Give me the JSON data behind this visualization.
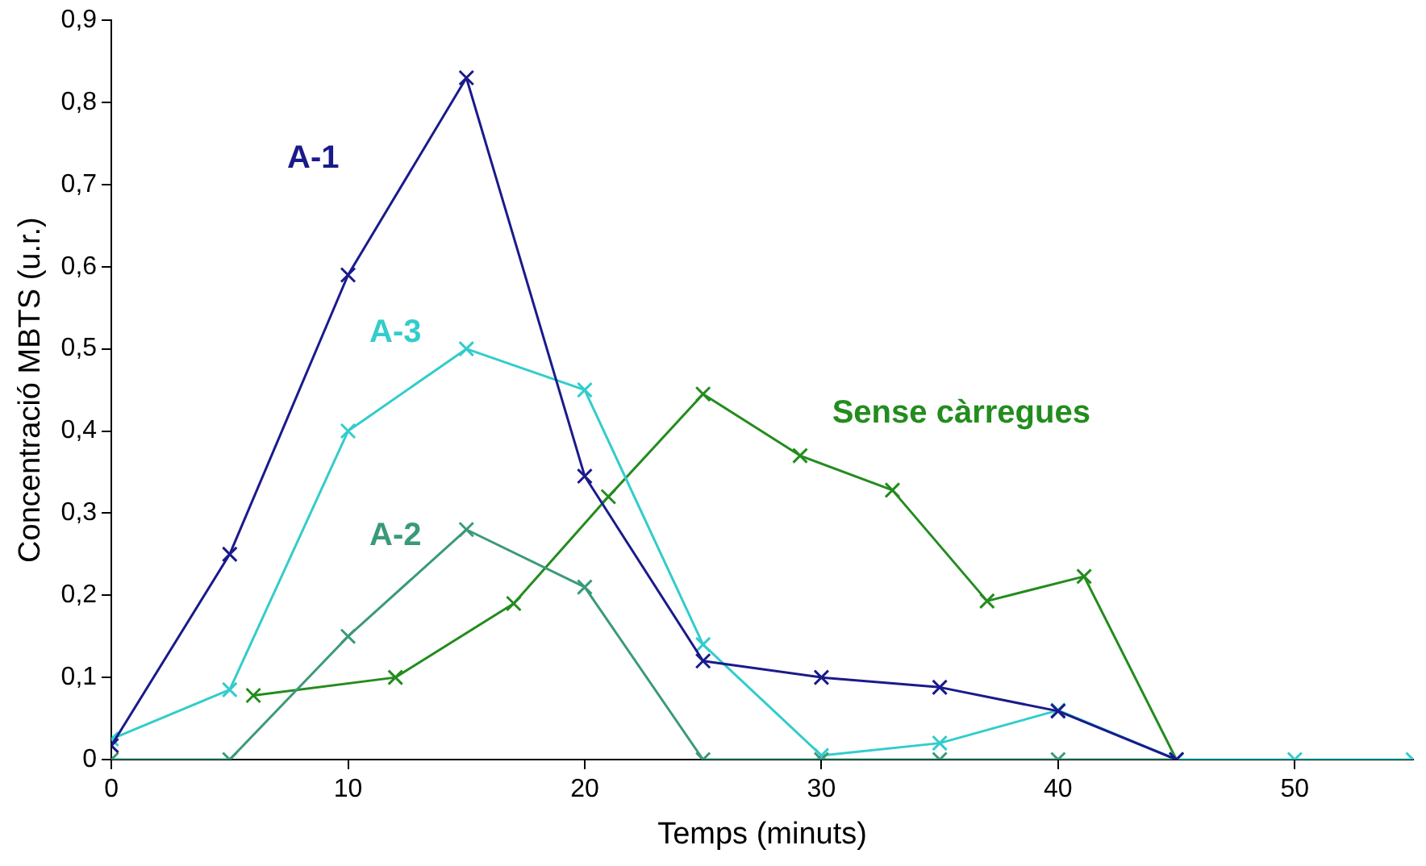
{
  "chart_data": {
    "type": "line",
    "xlabel": "Temps (minuts)",
    "ylabel": "Concentració MBTS (u.r.)",
    "xlim": [
      0,
      55
    ],
    "xticks": [
      0,
      10,
      20,
      30,
      40,
      50
    ],
    "ylim": [
      0,
      0.9
    ],
    "yticks": [
      {
        "value": 0,
        "label": "0"
      },
      {
        "value": 0.1,
        "label": "0,1"
      },
      {
        "value": 0.2,
        "label": "0,2"
      },
      {
        "value": 0.3,
        "label": "0,3"
      },
      {
        "value": 0.4,
        "label": "0,4"
      },
      {
        "value": 0.5,
        "label": "0,5"
      },
      {
        "value": 0.6,
        "label": "0,6"
      },
      {
        "value": 0.7,
        "label": "0,7"
      },
      {
        "value": 0.8,
        "label": "0,8"
      },
      {
        "value": 0.9,
        "label": "0,9"
      }
    ],
    "grid": false,
    "legend": false,
    "line_style": "solid",
    "series": [
      {
        "name": "A-1",
        "color": "#1a1a8c",
        "marker": "cross",
        "x": [
          0,
          5,
          10,
          15,
          20,
          25,
          30,
          35,
          40,
          45
        ],
        "values": [
          0.017,
          0.25,
          0.59,
          0.83,
          0.345,
          0.12,
          0.1,
          0.088,
          0.059,
          0
        ]
      },
      {
        "name": "A-2",
        "color": "#3a9a78",
        "marker": "cross",
        "x": [
          0,
          5,
          10,
          15,
          20,
          25,
          30,
          35,
          40,
          45
        ],
        "values": [
          0,
          0,
          0.15,
          0.28,
          0.21,
          0,
          0,
          0,
          0,
          0
        ]
      },
      {
        "name": "A-3",
        "color": "#33cccc",
        "marker": "cross",
        "x": [
          0,
          5,
          10,
          15,
          20,
          25,
          30,
          35,
          40,
          45,
          50,
          55
        ],
        "values": [
          0.025,
          0.085,
          0.4,
          0.5,
          0.45,
          0.14,
          0.005,
          0.02,
          0.06,
          0,
          0,
          0
        ]
      },
      {
        "name": "Sense càrregues",
        "color": "#238c1e",
        "marker": "cross",
        "x": [
          6,
          12,
          17,
          21,
          25,
          29.1,
          33,
          37,
          41.1,
          45
        ],
        "values": [
          0.078,
          0.1,
          0.19,
          0.32,
          0.445,
          0.37,
          0.328,
          0.193,
          0.223,
          0
        ]
      }
    ]
  }
}
